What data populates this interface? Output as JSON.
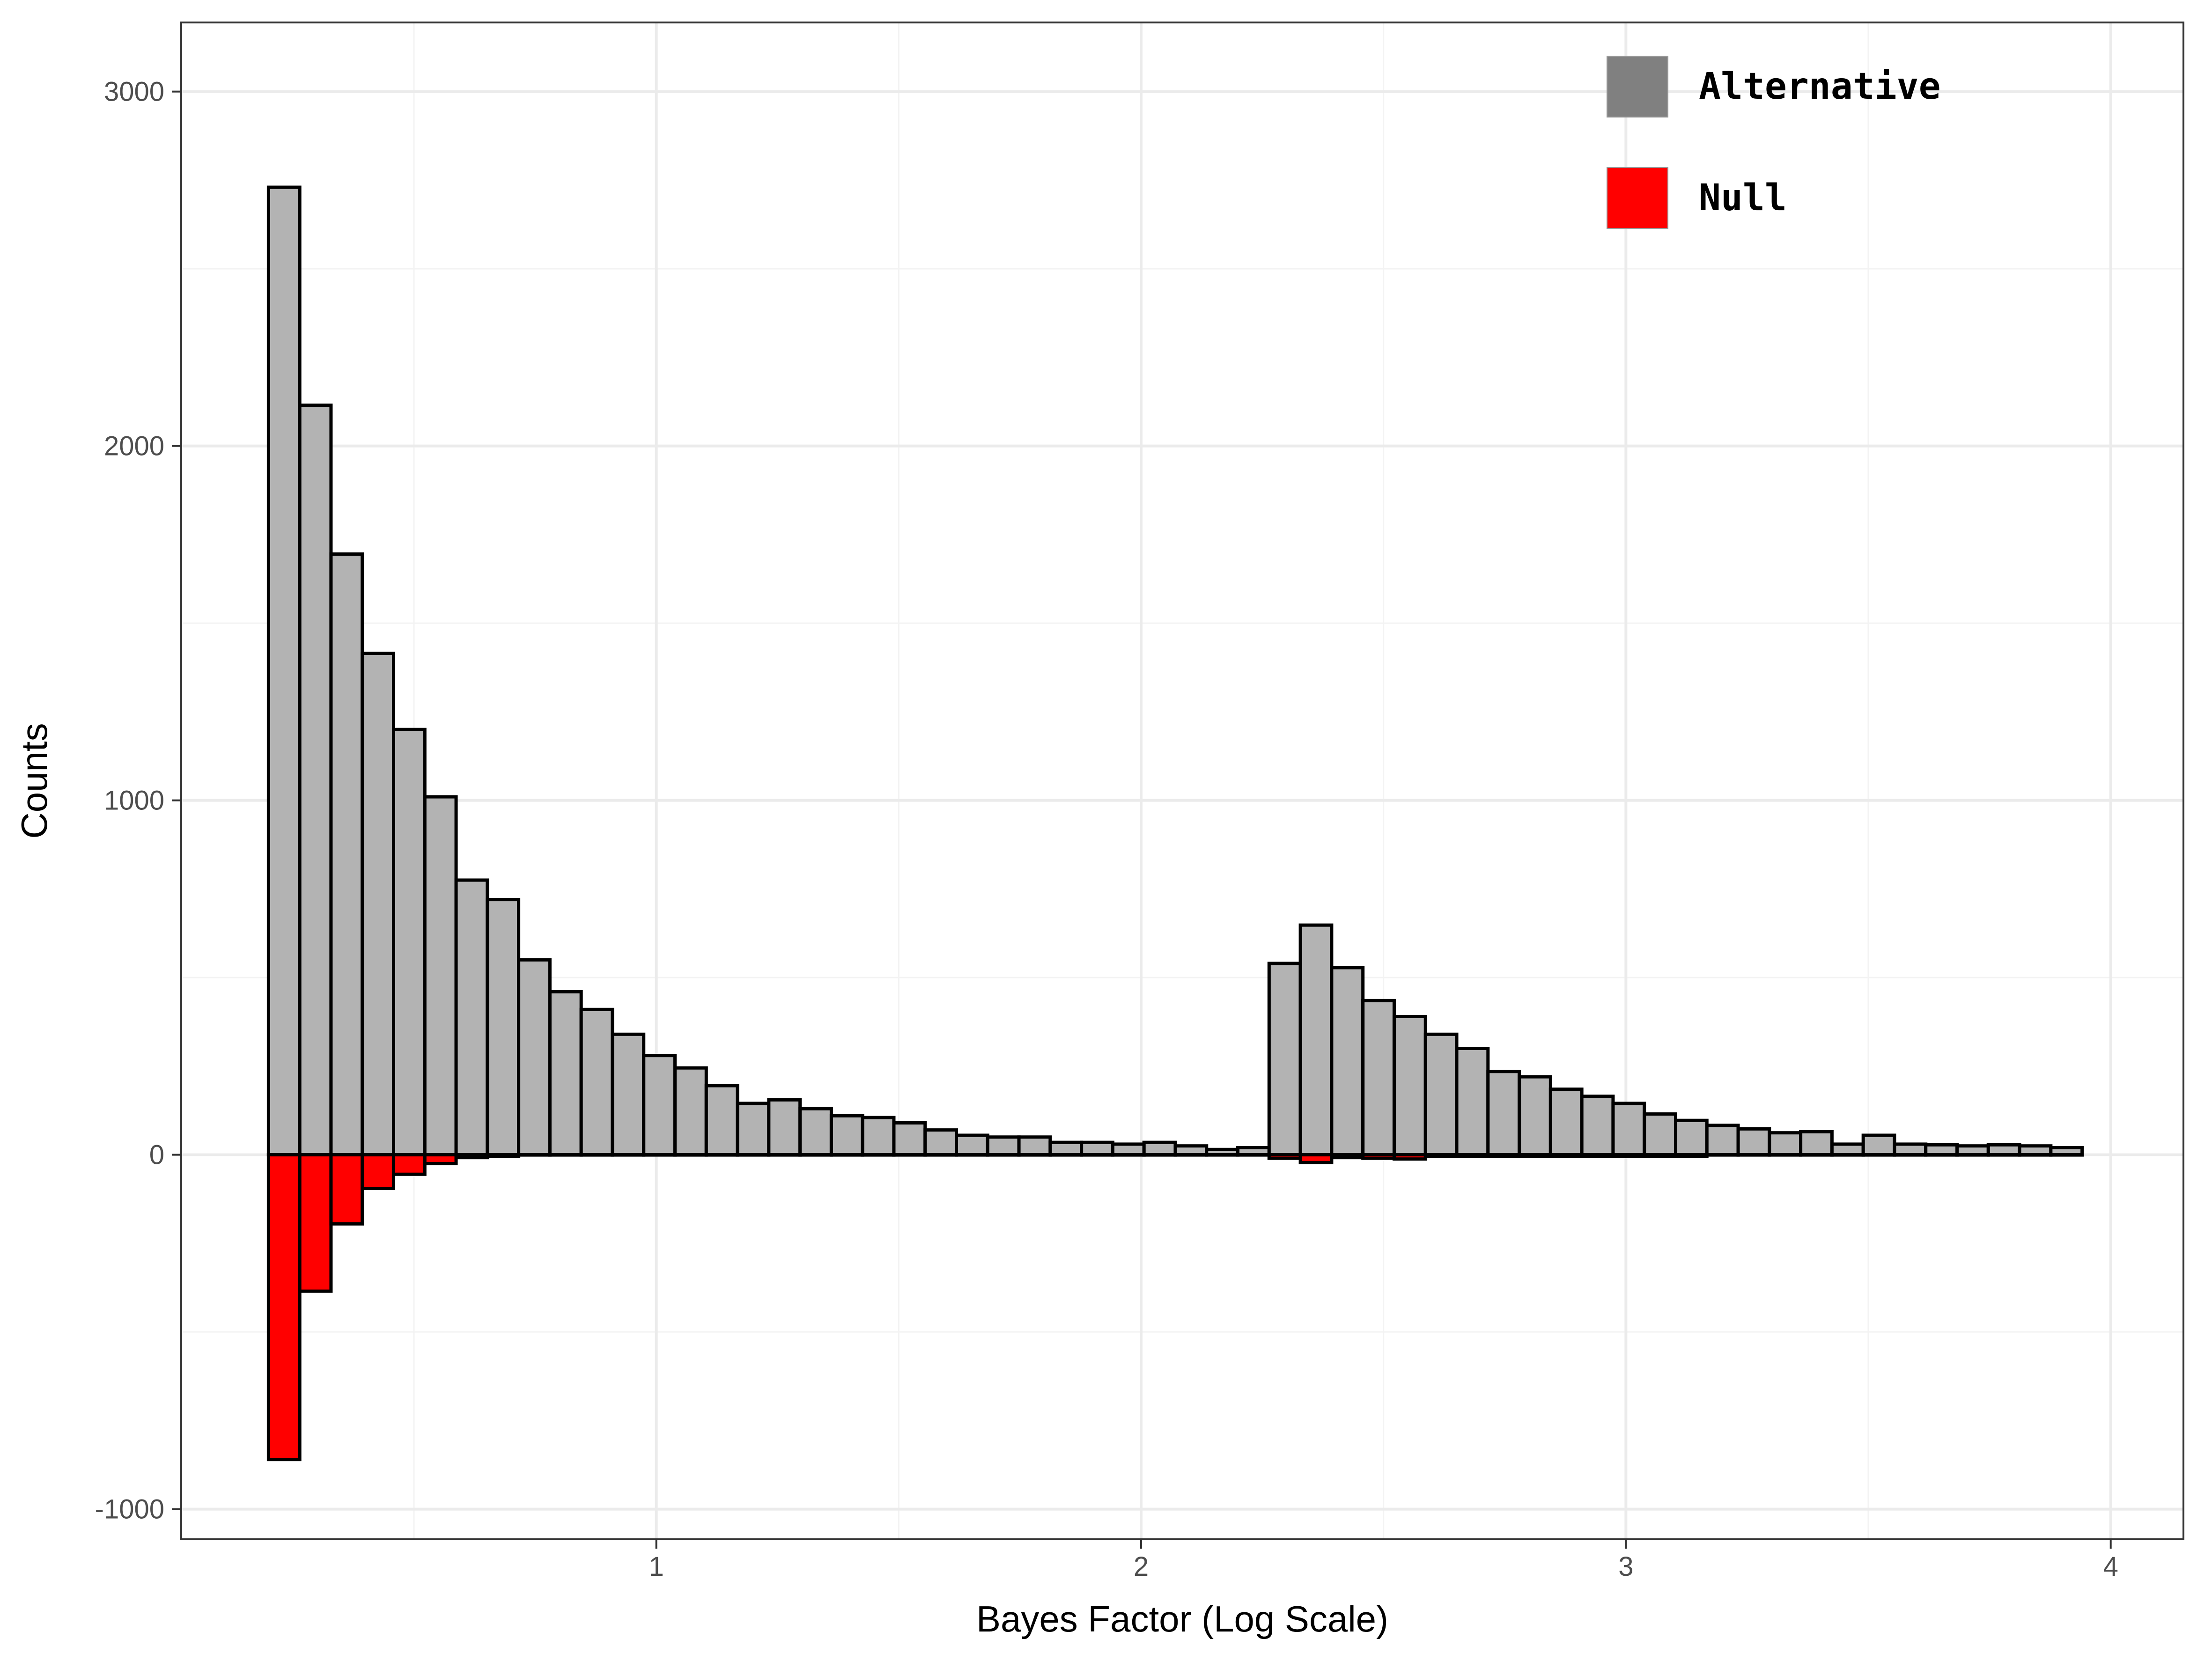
{
  "chart_data": {
    "type": "bar",
    "title": "",
    "xlabel": "Bayes Factor (Log Scale)",
    "ylabel": "Counts",
    "xlim": [
      0.02,
      4.15
    ],
    "ylim": [
      -1085,
      3195
    ],
    "x_ticks": [
      "1",
      "2",
      "3",
      "4"
    ],
    "x_tick_values": [
      1,
      2,
      3,
      4
    ],
    "y_ticks": [
      "-1000",
      "0",
      "1000",
      "2000",
      "3000"
    ],
    "y_tick_values": [
      -1000,
      0,
      1000,
      2000,
      3000
    ],
    "bin_start": 0.2,
    "bin_width": 0.0645,
    "series": [
      {
        "name": "Alternative",
        "color": "#b3b3b3",
        "values": [
          2730,
          2115,
          1695,
          1415,
          1200,
          1010,
          775,
          720,
          550,
          460,
          410,
          340,
          280,
          245,
          195,
          145,
          155,
          130,
          110,
          105,
          90,
          70,
          55,
          50,
          50,
          35,
          35,
          30,
          35,
          25,
          15,
          20,
          540,
          648,
          528,
          435,
          390,
          340,
          300,
          235,
          220,
          185,
          165,
          145,
          115,
          97,
          83,
          73,
          62,
          65,
          30,
          55,
          30,
          28,
          25,
          28,
          25,
          20
        ]
      },
      {
        "name": "Null",
        "color": "#ff0000",
        "values": [
          -860,
          -385,
          -195,
          -95,
          -55,
          -25,
          -8,
          -5,
          0,
          0,
          0,
          0,
          0,
          0,
          0,
          0,
          0,
          0,
          0,
          0,
          0,
          0,
          0,
          0,
          0,
          0,
          0,
          0,
          0,
          0,
          0,
          0,
          -10,
          -22,
          -8,
          -10,
          -12,
          -5,
          -5,
          -5,
          -5,
          -5,
          -5,
          -5,
          -5,
          -5,
          0,
          0,
          0,
          0,
          0,
          0,
          0,
          0,
          0,
          0,
          0,
          0
        ]
      }
    ],
    "legend": {
      "position": "top-right",
      "entries": [
        {
          "label": "Alternative",
          "swatch": "#808080"
        },
        {
          "label": "Null",
          "swatch": "#ff0000"
        }
      ]
    },
    "grid": true,
    "colors": {
      "panel_border": "#333333",
      "grid_major": "#ebebeb",
      "grid_minor": "#f3f3f3",
      "bar_outline": "#000000"
    }
  }
}
